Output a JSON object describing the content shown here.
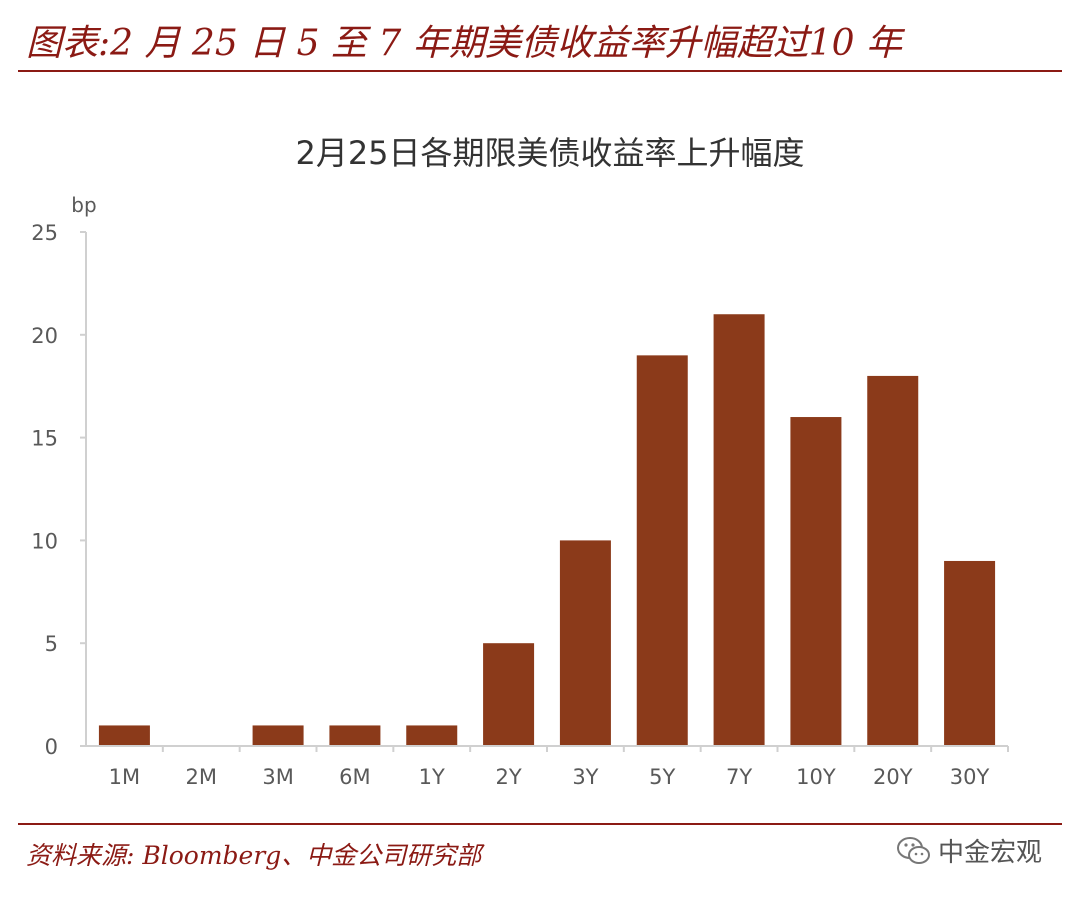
{
  "header": {
    "figure_title": "图表:2 月 25 日 5 至 7 年期美债收益率升幅超过10 年"
  },
  "footer": {
    "source": "资料来源: Bloomberg、中金公司研究部",
    "watermark": "中金宏观",
    "watermark_icon": "wechat-icon"
  },
  "colors": {
    "accent": "#8b1a14",
    "bar": "#8b3a1a",
    "axis": "#d0d0d0",
    "tick_text": "#595959"
  },
  "chart_data": {
    "type": "bar",
    "title": "2月25日各期限美债收益率上升幅度",
    "ylabel": "bp",
    "xlabel": "",
    "categories": [
      "1M",
      "2M",
      "3M",
      "6M",
      "1Y",
      "2Y",
      "3Y",
      "5Y",
      "7Y",
      "10Y",
      "20Y",
      "30Y"
    ],
    "values": [
      1,
      0,
      1,
      1,
      1,
      5,
      10,
      19,
      21,
      16,
      18,
      9
    ],
    "ylim": [
      0,
      25
    ],
    "yticks": [
      0,
      5,
      10,
      15,
      20,
      25
    ],
    "grid": false,
    "legend": "none"
  }
}
